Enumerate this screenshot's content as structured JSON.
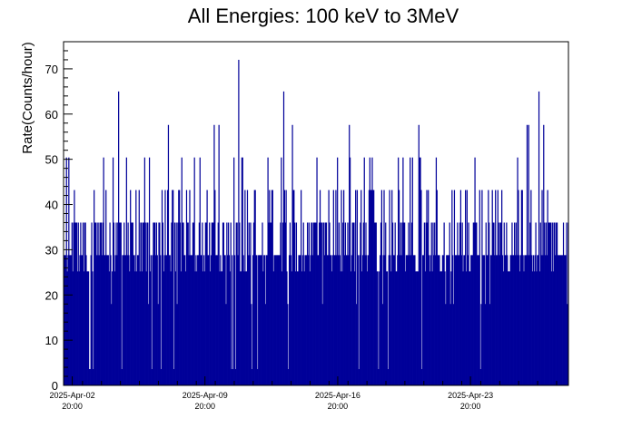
{
  "chart_data": {
    "type": "bar",
    "title": "All Energies:  100 keV to 3MeV",
    "xlabel": "",
    "ylabel": "Rate(Counts/hour)",
    "ylim": [
      0,
      76
    ],
    "yticks": [
      0,
      10,
      20,
      30,
      40,
      50,
      60,
      70
    ],
    "x_tick_labels": [
      {
        "date": "2025-Apr-02",
        "time": "20:00"
      },
      {
        "date": "2025-Apr-09",
        "time": "20:00"
      },
      {
        "date": "2025-Apr-16",
        "time": "20:00"
      },
      {
        "date": "2025-Apr-23",
        "time": "20:00"
      }
    ],
    "xlim": [
      "2025-Apr-02 09:00",
      "2025-Apr-29 00:00"
    ],
    "bin_width_hours": 1,
    "series": [
      {
        "color": "#000099",
        "summary": "hourly counts rate, mostly between 20 and 43 counts/hour, spikes up to 72",
        "peaks": [
          {
            "x": "2025-Apr-05 06:00",
            "y": 65
          },
          {
            "x": "2025-Apr-11 14:00",
            "y": 72
          },
          {
            "x": "2025-Apr-13 23:00",
            "y": 65
          },
          {
            "x": "2025-Apr-27 10:00",
            "y": 65
          }
        ]
      }
    ],
    "grid": false,
    "legend": "none"
  }
}
